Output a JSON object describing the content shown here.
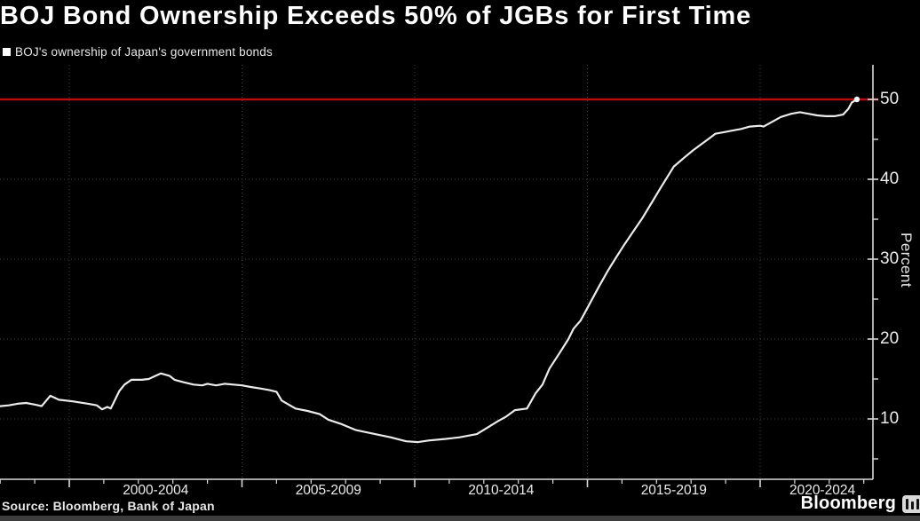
{
  "header": {
    "title": "BOJ Bond Ownership Exceeds 50% of JGBs for First Time"
  },
  "legend": {
    "label": "BOJ's ownership of Japan's government bonds",
    "swatch_color": "#ffffff"
  },
  "footer": {
    "source": "Source: Bloomberg, Bank of Japan",
    "brand": "Bloomberg",
    "brand_icon": "terminal-icon"
  },
  "chart_data": {
    "type": "line",
    "title": "BOJ Bond Ownership Exceeds 50% of JGBs for First Time",
    "subtitle": "",
    "xlabel": "",
    "ylabel": "Percent",
    "legend_entries": [
      "BOJ's ownership of Japan's government bonds"
    ],
    "legend_position": "top-left",
    "grid": "dotted",
    "xlim": [
      1998.0,
      2023.3
    ],
    "ylim": [
      2.4,
      54.3
    ],
    "y_ticks": [
      10,
      20,
      30,
      40,
      50
    ],
    "y_minor_ticks": [
      5,
      15,
      25,
      35,
      45
    ],
    "x_gridline_years": [
      2000,
      2005,
      2010,
      2015,
      2020
    ],
    "x_minor_tick_interval": 1,
    "x_tick_labels": [
      {
        "label": "2000-2004",
        "center_year": 2002.5
      },
      {
        "label": "2005-2009",
        "center_year": 2007.5
      },
      {
        "label": "2010-2014",
        "center_year": 2012.5
      },
      {
        "label": "2015-2019",
        "center_year": 2017.5
      },
      {
        "label": "2020-2024",
        "center_year": 2021.8
      }
    ],
    "threshold_line": {
      "value": 50,
      "color": "#b50d12"
    },
    "colors": {
      "line": "#ebebeb",
      "axis": "#d9d9d9",
      "grid": "#3f3f3f",
      "threshold": "#b50d12",
      "background": "#000000"
    },
    "end_marker": true,
    "series": [
      {
        "name": "BOJ's ownership of Japan's government bonds",
        "points": [
          [
            1998.0,
            11.6
          ],
          [
            1998.25,
            11.7
          ],
          [
            1998.5,
            11.9
          ],
          [
            1998.75,
            12.0
          ],
          [
            1999.0,
            11.8
          ],
          [
            1999.2,
            11.6
          ],
          [
            1999.45,
            12.9
          ],
          [
            1999.7,
            12.4
          ],
          [
            2000.1,
            12.2
          ],
          [
            2000.55,
            11.9
          ],
          [
            2000.8,
            11.7
          ],
          [
            2000.95,
            11.2
          ],
          [
            2001.1,
            11.5
          ],
          [
            2001.2,
            11.3
          ],
          [
            2001.45,
            13.5
          ],
          [
            2001.6,
            14.3
          ],
          [
            2001.8,
            14.9
          ],
          [
            2002.1,
            14.9
          ],
          [
            2002.3,
            15.0
          ],
          [
            2002.5,
            15.4
          ],
          [
            2002.65,
            15.7
          ],
          [
            2002.9,
            15.4
          ],
          [
            2003.05,
            14.9
          ],
          [
            2003.3,
            14.6
          ],
          [
            2003.6,
            14.3
          ],
          [
            2003.85,
            14.2
          ],
          [
            2004.0,
            14.4
          ],
          [
            2004.25,
            14.2
          ],
          [
            2004.5,
            14.4
          ],
          [
            2004.75,
            14.3
          ],
          [
            2005.0,
            14.2
          ],
          [
            2005.25,
            14.0
          ],
          [
            2005.55,
            13.8
          ],
          [
            2005.8,
            13.6
          ],
          [
            2006.0,
            13.4
          ],
          [
            2006.15,
            12.3
          ],
          [
            2006.35,
            11.8
          ],
          [
            2006.55,
            11.3
          ],
          [
            2006.9,
            11.0
          ],
          [
            2007.25,
            10.6
          ],
          [
            2007.5,
            9.9
          ],
          [
            2007.85,
            9.4
          ],
          [
            2008.3,
            8.6
          ],
          [
            2008.85,
            8.1
          ],
          [
            2009.3,
            7.7
          ],
          [
            2009.75,
            7.2
          ],
          [
            2010.1,
            7.1
          ],
          [
            2010.4,
            7.3
          ],
          [
            2010.9,
            7.5
          ],
          [
            2011.3,
            7.7
          ],
          [
            2011.8,
            8.1
          ],
          [
            2012.1,
            8.9
          ],
          [
            2012.4,
            9.7
          ],
          [
            2012.65,
            10.3
          ],
          [
            2012.9,
            11.1
          ],
          [
            2013.25,
            11.3
          ],
          [
            2013.5,
            13.2
          ],
          [
            2013.7,
            14.3
          ],
          [
            2013.9,
            16.3
          ],
          [
            2014.2,
            18.3
          ],
          [
            2014.45,
            20.0
          ],
          [
            2014.6,
            21.3
          ],
          [
            2014.8,
            22.3
          ],
          [
            2015.1,
            24.7
          ],
          [
            2015.35,
            26.7
          ],
          [
            2015.6,
            28.6
          ],
          [
            2015.8,
            30.0
          ],
          [
            2016.05,
            31.7
          ],
          [
            2016.3,
            33.3
          ],
          [
            2016.6,
            35.2
          ],
          [
            2016.85,
            37.0
          ],
          [
            2017.1,
            38.8
          ],
          [
            2017.3,
            40.2
          ],
          [
            2017.5,
            41.6
          ],
          [
            2017.8,
            42.7
          ],
          [
            2018.05,
            43.6
          ],
          [
            2018.3,
            44.4
          ],
          [
            2018.55,
            45.2
          ],
          [
            2018.7,
            45.7
          ],
          [
            2018.95,
            45.9
          ],
          [
            2019.2,
            46.1
          ],
          [
            2019.45,
            46.3
          ],
          [
            2019.7,
            46.6
          ],
          [
            2020.0,
            46.7
          ],
          [
            2020.1,
            46.6
          ],
          [
            2020.35,
            47.2
          ],
          [
            2020.6,
            47.8
          ],
          [
            2020.9,
            48.2
          ],
          [
            2021.15,
            48.4
          ],
          [
            2021.4,
            48.2
          ],
          [
            2021.65,
            48.0
          ],
          [
            2021.9,
            47.9
          ],
          [
            2022.15,
            47.9
          ],
          [
            2022.4,
            48.1
          ],
          [
            2022.55,
            48.8
          ],
          [
            2022.65,
            49.6
          ],
          [
            2022.8,
            50.0
          ]
        ]
      }
    ]
  }
}
